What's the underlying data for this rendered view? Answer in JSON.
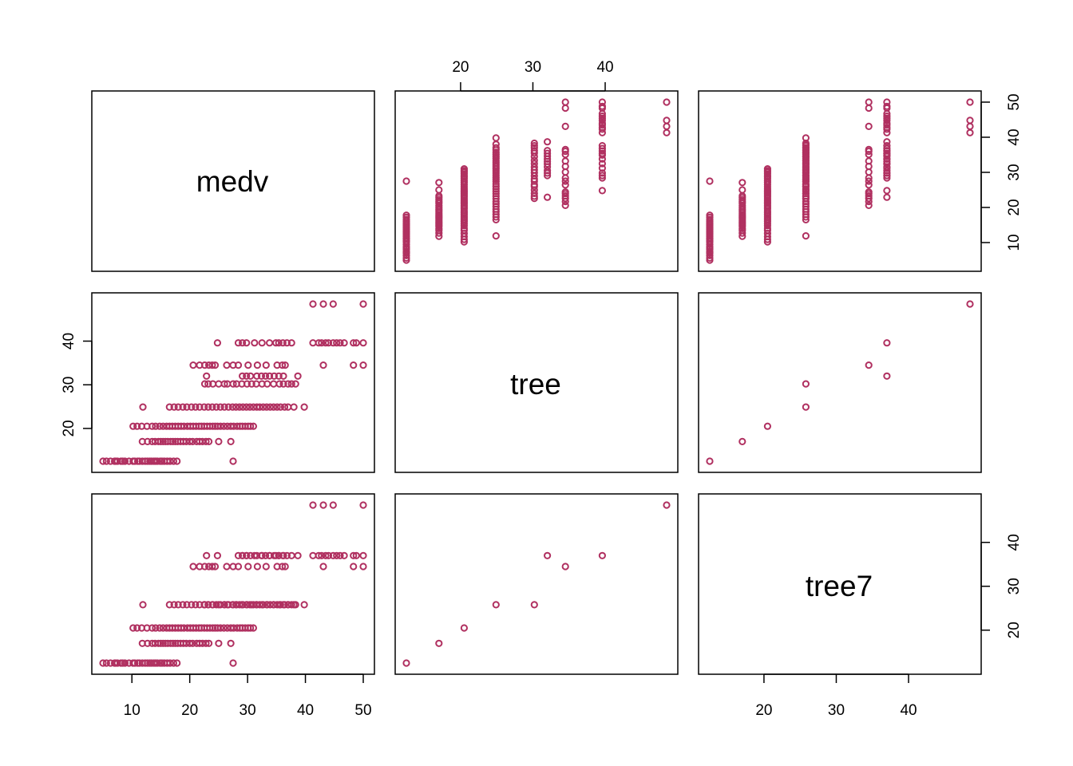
{
  "chart_data": {
    "type": "scatter",
    "variables": [
      "medv",
      "tree",
      "tree7"
    ],
    "point_color": "#B03060",
    "ranges": {
      "medv": [
        5,
        50
      ],
      "tree": [
        12.5,
        48.5
      ],
      "tree7": [
        12.5,
        48.5
      ]
    },
    "ticks": {
      "medv": [
        10,
        20,
        30,
        40,
        50
      ],
      "tree": [
        20,
        30,
        40
      ],
      "tree7": [
        20,
        30,
        40
      ]
    },
    "tree_levels": [
      12.5,
      17.0,
      20.5,
      24.9,
      30.2,
      32.0,
      34.5,
      39.6,
      48.5
    ],
    "level_medv": [
      [
        5.0,
        5.6,
        6.3,
        7.0,
        7.2,
        7.5,
        8.1,
        8.4,
        8.8,
        9.5,
        10.2,
        10.5,
        11.0,
        11.3,
        11.8,
        12.3,
        12.7,
        13.1,
        13.4,
        13.8,
        14.1,
        14.4,
        14.9,
        15.2,
        15.6,
        16.1,
        16.6,
        17.2,
        17.8,
        27.5
      ],
      [
        11.8,
        12.7,
        13.5,
        14.0,
        14.6,
        15.0,
        15.4,
        15.8,
        16.2,
        16.7,
        17.1,
        17.5,
        17.9,
        18.4,
        18.9,
        19.4,
        20.0,
        20.5,
        21.2,
        21.7,
        22.2,
        22.8,
        23.3,
        25.0,
        27.1
      ],
      [
        10.2,
        10.9,
        11.7,
        12.6,
        13.5,
        14.1,
        14.8,
        15.4,
        16.0,
        16.5,
        17.0,
        17.5,
        18.0,
        18.5,
        19.0,
        19.6,
        20.1,
        20.6,
        21.1,
        21.6,
        22.0,
        22.5,
        23.0,
        23.5,
        24.0,
        24.4,
        24.8,
        25.3,
        25.9,
        26.5,
        27.1,
        27.6,
        28.2,
        28.7,
        29.1,
        29.6,
        30.1,
        30.5,
        31.0
      ],
      [
        11.9,
        16.5,
        17.3,
        18.0,
        18.8,
        19.5,
        20.3,
        21.0,
        21.7,
        22.5,
        23.2,
        23.9,
        24.6,
        25.3,
        26.0,
        26.7,
        27.4,
        28.0,
        28.6,
        29.2,
        29.8,
        30.4,
        31.0,
        31.6,
        32.1,
        32.7,
        33.3,
        33.9,
        34.5,
        35.1,
        35.7,
        36.4,
        37.0,
        38.0,
        39.8
      ],
      [
        22.6,
        23.2,
        24.0,
        25.0,
        26.0,
        26.5,
        27.5,
        28.1,
        29.0,
        29.9,
        30.7,
        31.5,
        32.5,
        33.4,
        34.5,
        35.5,
        36.2,
        37.0,
        37.6,
        38.3
      ],
      [
        22.9,
        29.1,
        29.8,
        30.5,
        31.6,
        32.4,
        33.1,
        33.8,
        34.6,
        35.4,
        36.2,
        38.7
      ],
      [
        20.6,
        21.7,
        22.6,
        23.3,
        23.9,
        24.4,
        26.4,
        27.5,
        28.4,
        30.1,
        31.7,
        33.2,
        35.1,
        36.0,
        36.5,
        43.1,
        48.3,
        50.0
      ],
      [
        24.8,
        28.4,
        29.1,
        29.8,
        31.2,
        32.5,
        33.8,
        34.9,
        35.4,
        36.1,
        36.8,
        37.6,
        41.3,
        42.3,
        42.8,
        43.5,
        44.0,
        44.8,
        45.4,
        46.0,
        46.7,
        48.3,
        48.8,
        50.0
      ],
      [
        41.3,
        43.1,
        44.8,
        50.0
      ]
    ],
    "tree_vs_tree7": [
      [
        12.5,
        12.5
      ],
      [
        17.0,
        17.0
      ],
      [
        20.5,
        20.5
      ],
      [
        24.9,
        25.8
      ],
      [
        30.2,
        25.8
      ],
      [
        32.0,
        37.0
      ],
      [
        34.5,
        34.5
      ],
      [
        39.6,
        37.0
      ],
      [
        48.5,
        48.5
      ]
    ]
  }
}
